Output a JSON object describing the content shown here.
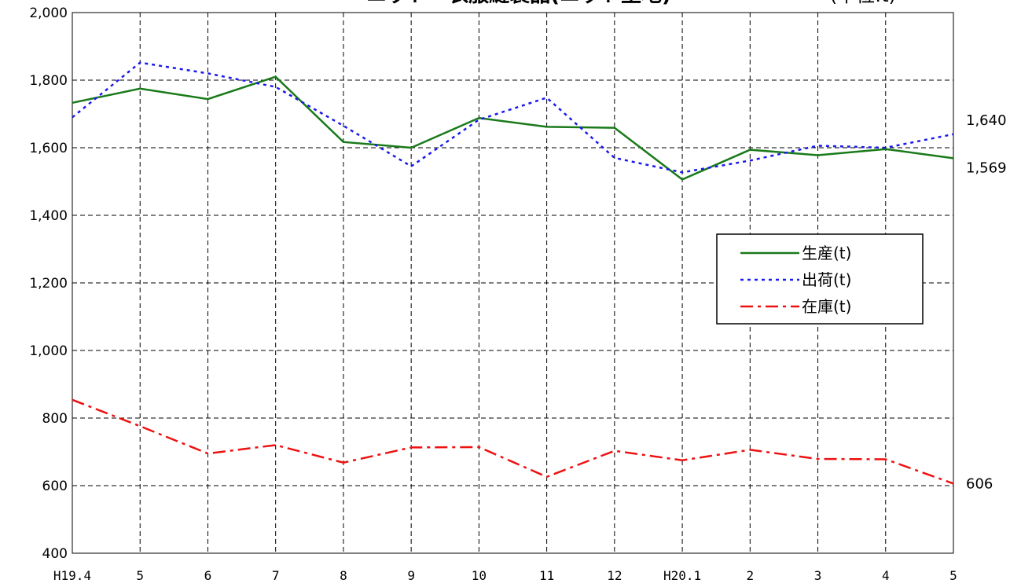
{
  "chart_data": {
    "type": "line",
    "title": "ニット・衣服縫製品(ニット生地)",
    "unit_label": "(単位:t)",
    "categories": [
      "H19.4",
      "5",
      "6",
      "7",
      "8",
      "9",
      "10",
      "11",
      "12",
      "H20.1",
      "2",
      "3",
      "4",
      "5"
    ],
    "ylim": [
      400,
      2000
    ],
    "y_ticks": [
      "400",
      "600",
      "800",
      "1,000",
      "1,200",
      "1,400",
      "1,600",
      "1,800",
      "2,000"
    ],
    "grid": true,
    "legend_position": "right",
    "series": [
      {
        "name": "生産(t)",
        "color": "#1a7a1a",
        "style": "solid",
        "values": [
          1733,
          1775,
          1744,
          1810,
          1617,
          1600,
          1688,
          1662,
          1659,
          1506,
          1594,
          1578,
          1596,
          1569
        ],
        "end_label": "1,569"
      },
      {
        "name": "出荷(t)",
        "color": "#1a1aee",
        "style": "dotted",
        "values": [
          1690,
          1852,
          1820,
          1780,
          1665,
          1545,
          1683,
          1748,
          1570,
          1527,
          1562,
          1606,
          1600,
          1640
        ],
        "end_label": "1,640"
      },
      {
        "name": "在庫(t)",
        "color": "#ee1111",
        "style": "dashdot",
        "values": [
          854,
          776,
          695,
          720,
          668,
          713,
          714,
          626,
          703,
          675,
          706,
          679,
          678,
          606
        ],
        "end_label": "606"
      }
    ]
  }
}
